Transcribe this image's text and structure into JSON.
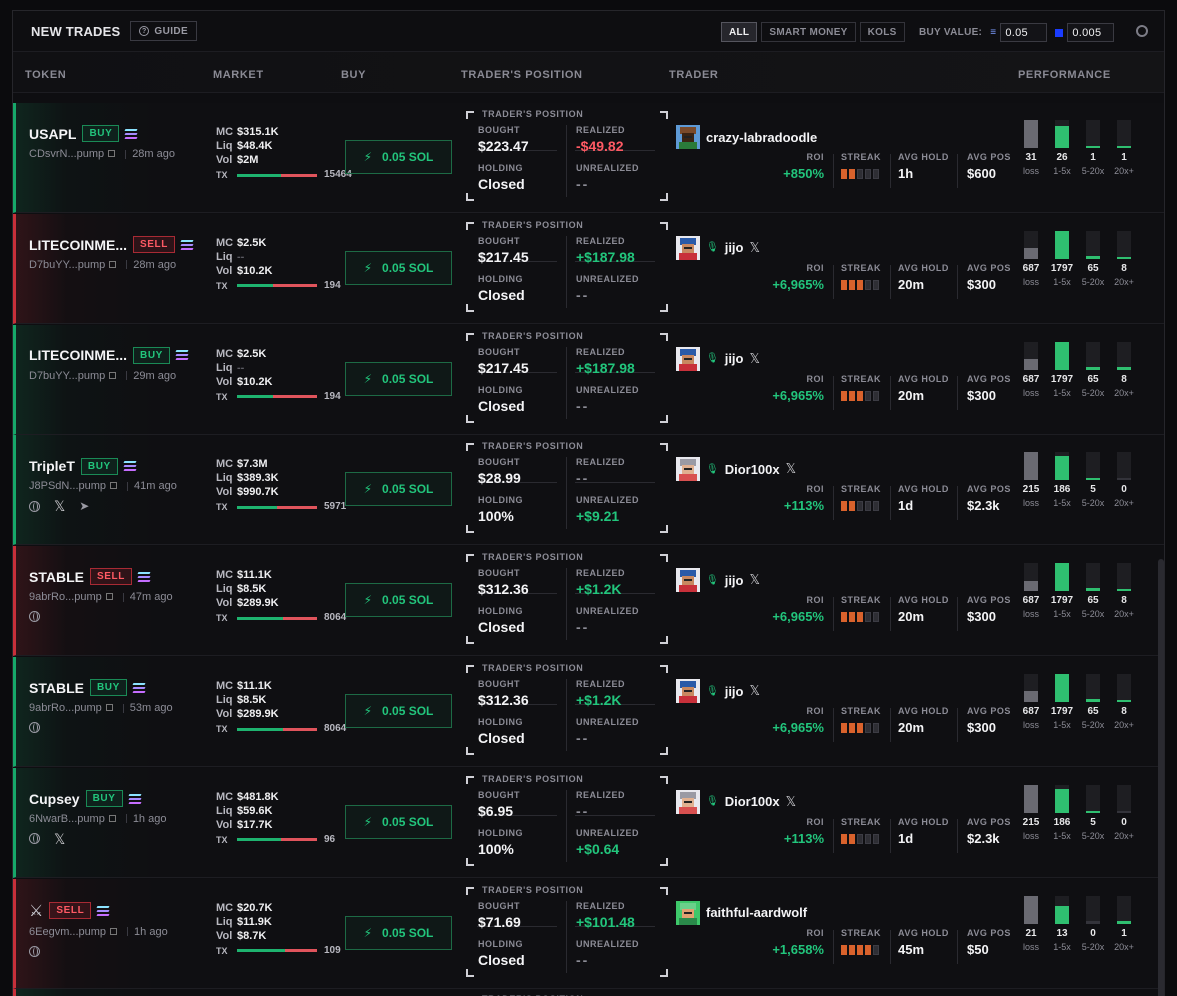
{
  "header": {
    "title": "NEW TRADES",
    "guide_label": "GUIDE",
    "filters": [
      "ALL",
      "SMART MONEY",
      "KOLS"
    ],
    "active_filter": "ALL",
    "buy_value_label": "BUY VALUE:",
    "buy_value_1": "0.05",
    "buy_value_2": "0.005"
  },
  "columns": {
    "token": "TOKEN",
    "market": "MARKET",
    "buy": "BUY",
    "position": "TRADER'S POSITION",
    "trader": "TRADER",
    "performance": "PERFORMANCE"
  },
  "labels": {
    "mc": "MC",
    "liq": "Liq",
    "vol": "Vol",
    "tx": "TX",
    "buy_button": "0.05 SOL",
    "pos_title": "TRADER'S POSITION",
    "bought": "BOUGHT",
    "realized": "REALIZED",
    "holding": "HOLDING",
    "unrealized": "UNREALIZED",
    "roi": "ROI",
    "streak": "STREAK",
    "avg_hold": "AVG HOLD",
    "avg_pos": "AVG POS",
    "perf_labels": [
      "loss",
      "1-5x",
      "5-20x",
      "20x+"
    ]
  },
  "colors": {
    "green": "#22c57c",
    "red": "#ff5a64",
    "streak": "#d9622c"
  },
  "rows": [
    {
      "side": "buy",
      "token": "USAPL",
      "tag": "BUY",
      "address": "CDsvrN...pump",
      "age": "28m ago",
      "links": [],
      "mc": "$315.1K",
      "liq": "$48.4K",
      "vol": "$2M",
      "tx": "15464",
      "tx_buy_ratio": 0.55,
      "bought": "$223.47",
      "realized": "-$49.82",
      "realized_color": "red",
      "holding": "Closed",
      "unrealized": "--",
      "unrealized_color": "dash",
      "trader": "crazy-labradoodle",
      "avatar": "brown",
      "verified": false,
      "x": false,
      "roi": "+850%",
      "streak": 2,
      "avg_hold": "1h",
      "avg_pos": "$600",
      "perf": [
        31,
        26,
        1,
        1
      ],
      "perf_frac": [
        1,
        0.8,
        0.08,
        0.08
      ]
    },
    {
      "side": "sell",
      "token": "LITECOINME...",
      "tag": "SELL",
      "address": "D7buYY...pump",
      "age": "28m ago",
      "links": [],
      "mc": "$2.5K",
      "liq": "--",
      "vol": "$10.2K",
      "tx": "194",
      "tx_buy_ratio": 0.45,
      "bought": "$217.45",
      "realized": "+$187.98",
      "realized_color": "green",
      "holding": "Closed",
      "unrealized": "--",
      "unrealized_color": "dash",
      "trader": "jijo",
      "avatar": "blue",
      "verified": true,
      "x": true,
      "roi": "+6,965%",
      "streak": 3,
      "avg_hold": "20m",
      "avg_pos": "$300",
      "perf": [
        687,
        1797,
        65,
        8
      ],
      "perf_frac": [
        0.38,
        1,
        0.1,
        0.06
      ]
    },
    {
      "side": "buy",
      "token": "LITECOINME...",
      "tag": "BUY",
      "address": "D7buYY...pump",
      "age": "29m ago",
      "links": [],
      "mc": "$2.5K",
      "liq": "--",
      "vol": "$10.2K",
      "tx": "194",
      "tx_buy_ratio": 0.45,
      "bought": "$217.45",
      "realized": "+$187.98",
      "realized_color": "green",
      "holding": "Closed",
      "unrealized": "--",
      "unrealized_color": "dash",
      "trader": "jijo",
      "avatar": "blue",
      "verified": true,
      "x": true,
      "roi": "+6,965%",
      "streak": 3,
      "avg_hold": "20m",
      "avg_pos": "$300",
      "perf": [
        687,
        1797,
        65,
        8
      ],
      "perf_frac": [
        0.38,
        1,
        0.1,
        0.06
      ]
    },
    {
      "side": "buy",
      "token": "TripleT",
      "tag": "BUY",
      "address": "J8PSdN...pump",
      "age": "41m ago",
      "links": [
        "globe",
        "x",
        "telegram"
      ],
      "mc": "$7.3M",
      "liq": "$389.3K",
      "vol": "$990.7K",
      "tx": "5971",
      "tx_buy_ratio": 0.5,
      "bought": "$28.99",
      "realized": "--",
      "realized_color": "dash",
      "holding": "100%",
      "unrealized": "+$9.21",
      "unrealized_color": "green",
      "trader": "Dior100x",
      "avatar": "gray",
      "verified": true,
      "x": true,
      "roi": "+113%",
      "streak": 2,
      "avg_hold": "1d",
      "avg_pos": "$2.3k",
      "perf": [
        215,
        186,
        5,
        0
      ],
      "perf_frac": [
        1,
        0.86,
        0.08,
        0.04
      ]
    },
    {
      "side": "sell",
      "token": "STABLE",
      "tag": "SELL",
      "address": "9abrRo...pump",
      "age": "47m ago",
      "links": [
        "globe"
      ],
      "mc": "$11.1K",
      "liq": "$8.5K",
      "vol": "$289.9K",
      "tx": "8064",
      "tx_buy_ratio": 0.58,
      "bought": "$312.36",
      "realized": "+$1.2K",
      "realized_color": "green",
      "holding": "Closed",
      "unrealized": "--",
      "unrealized_color": "dash",
      "trader": "jijo",
      "avatar": "blue",
      "verified": true,
      "x": true,
      "roi": "+6,965%",
      "streak": 3,
      "avg_hold": "20m",
      "avg_pos": "$300",
      "perf": [
        687,
        1797,
        65,
        8
      ],
      "perf_frac": [
        0.38,
        1,
        0.1,
        0.06
      ]
    },
    {
      "side": "buy",
      "token": "STABLE",
      "tag": "BUY",
      "address": "9abrRo...pump",
      "age": "53m ago",
      "links": [
        "globe"
      ],
      "mc": "$11.1K",
      "liq": "$8.5K",
      "vol": "$289.9K",
      "tx": "8064",
      "tx_buy_ratio": 0.58,
      "bought": "$312.36",
      "realized": "+$1.2K",
      "realized_color": "green",
      "holding": "Closed",
      "unrealized": "--",
      "unrealized_color": "dash",
      "trader": "jijo",
      "avatar": "blue",
      "verified": true,
      "x": true,
      "roi": "+6,965%",
      "streak": 3,
      "avg_hold": "20m",
      "avg_pos": "$300",
      "perf": [
        687,
        1797,
        65,
        8
      ],
      "perf_frac": [
        0.38,
        1,
        0.1,
        0.06
      ]
    },
    {
      "side": "buy",
      "token": "Cupsey",
      "tag": "BUY",
      "address": "6NwarB...pump",
      "age": "1h ago",
      "links": [
        "globe",
        "x"
      ],
      "mc": "$481.8K",
      "liq": "$59.6K",
      "vol": "$17.7K",
      "tx": "96",
      "tx_buy_ratio": 0.55,
      "bought": "$6.95",
      "realized": "--",
      "realized_color": "dash",
      "holding": "100%",
      "unrealized": "+$0.64",
      "unrealized_color": "green",
      "trader": "Dior100x",
      "avatar": "gray",
      "verified": true,
      "x": true,
      "roi": "+113%",
      "streak": 2,
      "avg_hold": "1d",
      "avg_pos": "$2.3k",
      "perf": [
        215,
        186,
        5,
        0
      ],
      "perf_frac": [
        1,
        0.86,
        0.08,
        0.04
      ]
    },
    {
      "side": "sell",
      "token": "",
      "tag": "SELL",
      "address": "6Eegvm...pump",
      "age": "1h ago",
      "links": [
        "globe"
      ],
      "token_icon": "⚔",
      "mc": "$20.7K",
      "liq": "$11.9K",
      "vol": "$8.7K",
      "tx": "109",
      "tx_buy_ratio": 0.6,
      "bought": "$71.69",
      "realized": "+$101.48",
      "realized_color": "green",
      "holding": "Closed",
      "unrealized": "--",
      "unrealized_color": "dash",
      "trader": "faithful-aardwolf",
      "avatar": "green",
      "verified": false,
      "x": false,
      "roi": "+1,658%",
      "streak": 4,
      "avg_hold": "45m",
      "avg_pos": "$50",
      "perf": [
        21,
        13,
        0,
        1
      ],
      "perf_frac": [
        1,
        0.62,
        0.04,
        0.08
      ]
    }
  ],
  "next_row_title": "TRADER'S POSITION"
}
